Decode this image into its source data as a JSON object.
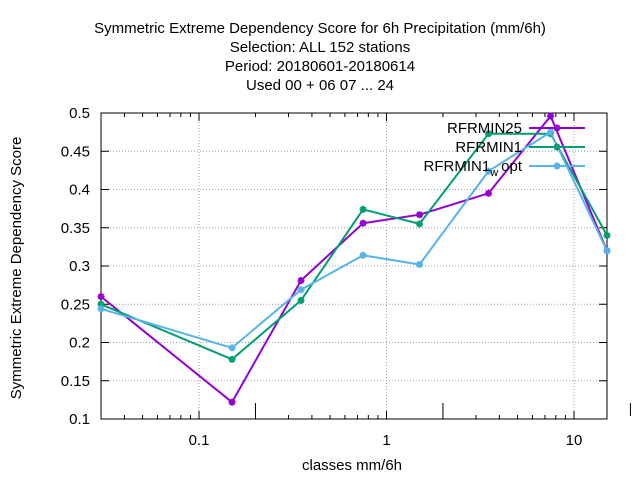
{
  "chart_data": {
    "type": "line",
    "title_lines": [
      "Symmetric Extreme Dependency Score  for 6h Precipitation (mm/6h)",
      "Selection: ALL    152 stations",
      "Period: 20180601-20180614",
      "Used  00 + 06 07 ... 24"
    ],
    "xlabel": "classes mm/6h",
    "ylabel": "Symmetric Extreme Dependency Score",
    "x_scale": "log",
    "xlim": [
      0.03,
      15
    ],
    "ylim": [
      0.1,
      0.5
    ],
    "x_ticks": [
      {
        "value": 0.1,
        "label": "0.1"
      },
      {
        "value": 1,
        "label": "1"
      },
      {
        "value": 10,
        "label": "10"
      }
    ],
    "y_ticks": [
      {
        "value": 0.1,
        "label": "0.1"
      },
      {
        "value": 0.15,
        "label": "0.15"
      },
      {
        "value": 0.2,
        "label": "0.2"
      },
      {
        "value": 0.25,
        "label": "0.25"
      },
      {
        "value": 0.3,
        "label": "0.3"
      },
      {
        "value": 0.35,
        "label": "0.35"
      },
      {
        "value": 0.4,
        "label": "0.4"
      },
      {
        "value": 0.45,
        "label": "0.45"
      },
      {
        "value": 0.5,
        "label": "0.5"
      }
    ],
    "grid": true,
    "legend_position": "top-right",
    "x": [
      0.03,
      0.15,
      0.35,
      0.75,
      1.5,
      3.5,
      7.5,
      15
    ],
    "series": [
      {
        "name": "RFRMIN25",
        "color": "#9400d3",
        "values": [
          0.26,
          0.122,
          0.281,
          0.356,
          0.367,
          0.395,
          0.496,
          0.32
        ]
      },
      {
        "name": "RFRMIN1",
        "color": "#009e73",
        "values": [
          0.25,
          0.178,
          0.255,
          0.374,
          0.355,
          0.473,
          0.473,
          0.34
        ]
      },
      {
        "name": "RFRMIN1_w_opt",
        "legend_main": "RFRMIN1",
        "legend_sub": "w",
        "legend_tail": "opt",
        "color": "#56b4e9",
        "values": [
          0.244,
          0.193,
          0.269,
          0.314,
          0.302,
          0.424,
          0.475,
          0.32
        ]
      }
    ]
  }
}
